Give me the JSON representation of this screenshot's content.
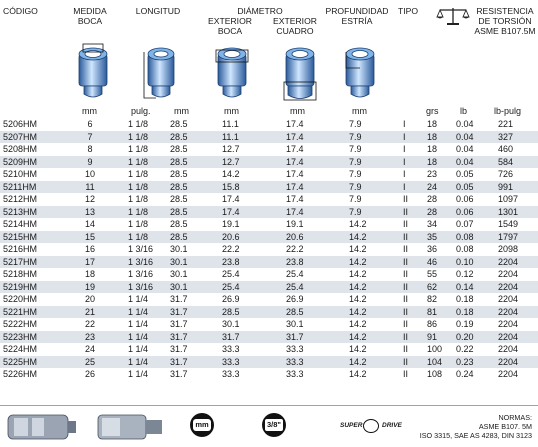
{
  "headers": {
    "codigo": "CÓDIGO",
    "medida_boca": [
      "MEDIDA",
      "BOCA"
    ],
    "longitud": "LONGITUD",
    "diametro": "DIÁMETRO",
    "exterior_boca": [
      "EXTERIOR",
      "BOCA"
    ],
    "exterior_cuadro": [
      "EXTERIOR",
      "CUADRO"
    ],
    "profundidad": [
      "PROFUNDIDAD",
      "ESTRÍA"
    ],
    "tipo": "TIPO",
    "resistencia": [
      "RESISTENCIA",
      "DE TORSIÓN",
      "ASME B107.5M"
    ]
  },
  "units": {
    "boca": "mm",
    "long_in": "pulg.",
    "long_mm": "mm",
    "ext_boca": "mm",
    "ext_cuadro": "mm",
    "estria": "mm",
    "grs": "grs",
    "lb": "lb",
    "lbp": "lb-pulg"
  },
  "rows": [
    {
      "code": "5206HM",
      "boca": "6",
      "in": "1 1/8",
      "mm": "28.5",
      "ext": "11.1",
      "cua": "17.4",
      "est": "7.9",
      "tipo": "I",
      "grs": "18",
      "lb": "0.04",
      "lbp": "221"
    },
    {
      "code": "5207HM",
      "boca": "7",
      "in": "1 1/8",
      "mm": "28.5",
      "ext": "11.1",
      "cua": "17.4",
      "est": "7.9",
      "tipo": "I",
      "grs": "18",
      "lb": "0.04",
      "lbp": "327"
    },
    {
      "code": "5208HM",
      "boca": "8",
      "in": "1 1/8",
      "mm": "28.5",
      "ext": "12.7",
      "cua": "17.4",
      "est": "7.9",
      "tipo": "I",
      "grs": "18",
      "lb": "0.04",
      "lbp": "460"
    },
    {
      "code": "5209HM",
      "boca": "9",
      "in": "1 1/8",
      "mm": "28.5",
      "ext": "12.7",
      "cua": "17.4",
      "est": "7.9",
      "tipo": "I",
      "grs": "18",
      "lb": "0.04",
      "lbp": "584"
    },
    {
      "code": "5210HM",
      "boca": "10",
      "in": "1 1/8",
      "mm": "28.5",
      "ext": "14.2",
      "cua": "17.4",
      "est": "7.9",
      "tipo": "I",
      "grs": "23",
      "lb": "0.05",
      "lbp": "726"
    },
    {
      "code": "5211HM",
      "boca": "11",
      "in": "1 1/8",
      "mm": "28.5",
      "ext": "15.8",
      "cua": "17.4",
      "est": "7.9",
      "tipo": "I",
      "grs": "24",
      "lb": "0.05",
      "lbp": "991"
    },
    {
      "code": "5212HM",
      "boca": "12",
      "in": "1 1/8",
      "mm": "28.5",
      "ext": "17.4",
      "cua": "17.4",
      "est": "7.9",
      "tipo": "II",
      "grs": "28",
      "lb": "0.06",
      "lbp": "1097"
    },
    {
      "code": "5213HM",
      "boca": "13",
      "in": "1 1/8",
      "mm": "28.5",
      "ext": "17.4",
      "cua": "17.4",
      "est": "7.9",
      "tipo": "II",
      "grs": "28",
      "lb": "0.06",
      "lbp": "1301"
    },
    {
      "code": "5214HM",
      "boca": "14",
      "in": "1 1/8",
      "mm": "28.5",
      "ext": "19.1",
      "cua": "19.1",
      "est": "14.2",
      "tipo": "II",
      "grs": "34",
      "lb": "0.07",
      "lbp": "1549"
    },
    {
      "code": "5215HM",
      "boca": "15",
      "in": "1 1/8",
      "mm": "28.5",
      "ext": "20.6",
      "cua": "20.6",
      "est": "14.2",
      "tipo": "II",
      "grs": "35",
      "lb": "0.08",
      "lbp": "1797"
    },
    {
      "code": "5216HM",
      "boca": "16",
      "in": "1 3/16",
      "mm": "30.1",
      "ext": "22.2",
      "cua": "22.2",
      "est": "14.2",
      "tipo": "II",
      "grs": "36",
      "lb": "0.08",
      "lbp": "2098"
    },
    {
      "code": "5217HM",
      "boca": "17",
      "in": "1 3/16",
      "mm": "30.1",
      "ext": "23.8",
      "cua": "23.8",
      "est": "14.2",
      "tipo": "II",
      "grs": "46",
      "lb": "0.10",
      "lbp": "2204"
    },
    {
      "code": "5218HM",
      "boca": "18",
      "in": "1 3/16",
      "mm": "30.1",
      "ext": "25.4",
      "cua": "25.4",
      "est": "14.2",
      "tipo": "II",
      "grs": "55",
      "lb": "0.12",
      "lbp": "2204"
    },
    {
      "code": "5219HM",
      "boca": "19",
      "in": "1 3/16",
      "mm": "30.1",
      "ext": "25.4",
      "cua": "25.4",
      "est": "14.2",
      "tipo": "II",
      "grs": "62",
      "lb": "0.14",
      "lbp": "2204"
    },
    {
      "code": "5220HM",
      "boca": "20",
      "in": "1 1/4",
      "mm": "31.7",
      "ext": "26.9",
      "cua": "26.9",
      "est": "14.2",
      "tipo": "II",
      "grs": "82",
      "lb": "0.18",
      "lbp": "2204"
    },
    {
      "code": "5221HM",
      "boca": "21",
      "in": "1 1/4",
      "mm": "31.7",
      "ext": "28.5",
      "cua": "28.5",
      "est": "14.2",
      "tipo": "II",
      "grs": "81",
      "lb": "0.18",
      "lbp": "2204"
    },
    {
      "code": "5222HM",
      "boca": "22",
      "in": "1 1/4",
      "mm": "31.7",
      "ext": "30.1",
      "cua": "30.1",
      "est": "14.2",
      "tipo": "II",
      "grs": "86",
      "lb": "0.19",
      "lbp": "2204"
    },
    {
      "code": "5223HM",
      "boca": "23",
      "in": "1 1/4",
      "mm": "31.7",
      "ext": "31.7",
      "cua": "31.7",
      "est": "14.2",
      "tipo": "II",
      "grs": "91",
      "lb": "0.20",
      "lbp": "2204"
    },
    {
      "code": "5224HM",
      "boca": "24",
      "in": "1 1/4",
      "mm": "31.7",
      "ext": "33.3",
      "cua": "33.3",
      "est": "14.2",
      "tipo": "II",
      "grs": "100",
      "lb": "0.22",
      "lbp": "2204"
    },
    {
      "code": "5225HM",
      "boca": "25",
      "in": "1 1/4",
      "mm": "31.7",
      "ext": "33.3",
      "cua": "33.3",
      "est": "14.2",
      "tipo": "II",
      "grs": "104",
      "lb": "0.23",
      "lbp": "2204"
    },
    {
      "code": "5226HM",
      "boca": "26",
      "in": "1 1/4",
      "mm": "31.7",
      "ext": "33.3",
      "cua": "33.3",
      "est": "14.2",
      "tipo": "II",
      "grs": "108",
      "lb": "0.24",
      "lbp": "2204"
    }
  ],
  "footer": {
    "badge_mm": "mm",
    "badge_drive": "3/8\"",
    "brand_left": "SUPER",
    "brand_right": "DRIVE",
    "normas": [
      "NORMAS:",
      "ASME B107. 5M",
      "ISO 3315, SAE AS 4283, DIN 3123"
    ]
  },
  "icons": [
    "scale-icon",
    "socket-diagram",
    "hex-socket-icon",
    "square-drive-icon",
    "super-drive-logo"
  ],
  "colors": {
    "stripe": "#dfe3ea",
    "socket_blue": "#7fb4e8",
    "socket_dark": "#2a5a9a"
  }
}
